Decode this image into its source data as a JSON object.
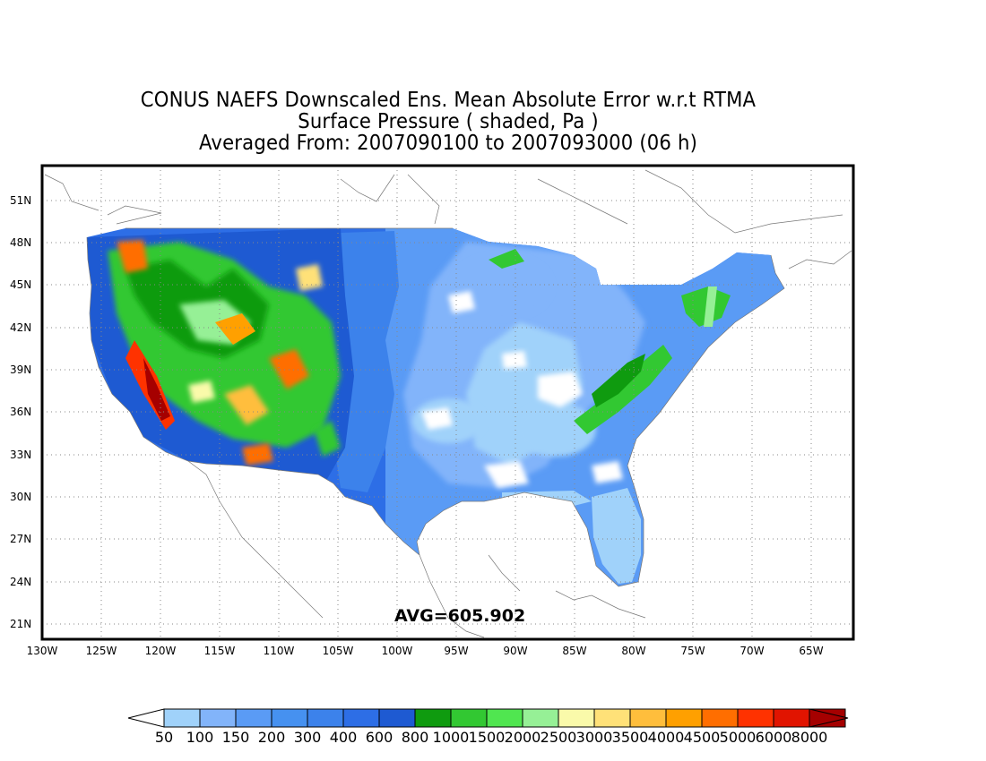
{
  "title": {
    "line1": "CONUS NAEFS Downscaled Ens. Mean Absolute Error w.r.t RTMA",
    "line2": "Surface Pressure ( shaded, Pa )",
    "line3": "Averaged From: 2007090100 to 2007093000 (06 h)"
  },
  "map": {
    "lat_labels": [
      "51N",
      "48N",
      "45N",
      "42N",
      "39N",
      "36N",
      "33N",
      "30N",
      "27N",
      "24N",
      "21N"
    ],
    "lon_labels": [
      "130W",
      "125W",
      "120W",
      "115W",
      "110W",
      "105W",
      "100W",
      "95W",
      "90W",
      "85W",
      "80W",
      "75W",
      "70W",
      "65W"
    ],
    "avg_text": "AVG=605.902"
  },
  "colorbar": {
    "labels": [
      "50",
      "100",
      "150",
      "200",
      "300",
      "400",
      "600",
      "800",
      "1000",
      "1500",
      "2000",
      "2500",
      "3000",
      "3500",
      "4000",
      "4500",
      "5000",
      "6000",
      "8000"
    ],
    "colors": [
      "#a0d2fa",
      "#82b4fa",
      "#5a9bf5",
      "#4691f0",
      "#3c82eb",
      "#2d6ee6",
      "#1e5ad2",
      "#0f9b0f",
      "#32c832",
      "#50e650",
      "#96f096",
      "#fafaaa",
      "#ffe178",
      "#ffbe3c",
      "#ffa000",
      "#ff6e00",
      "#ff3200",
      "#e11400",
      "#a50000"
    ],
    "under_color": "#ffffff",
    "over_color": "#a50000"
  }
}
